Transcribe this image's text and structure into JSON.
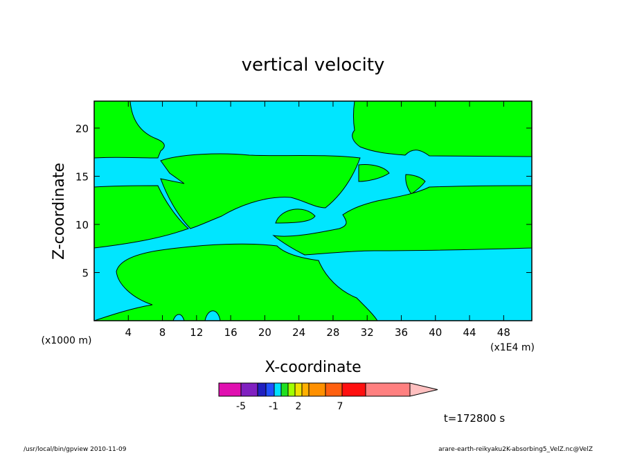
{
  "chart_data": {
    "type": "heatmap",
    "title": "vertical velocity",
    "xlabel": "X-coordinate",
    "ylabel": "Z-coordinate",
    "x_unit_left": "(x1000 m)",
    "x_unit_right": "(x1E4 m)",
    "xlim": [
      0,
      51.3
    ],
    "ylim": [
      0,
      22.8
    ],
    "x_ticks": [
      4,
      8,
      12,
      16,
      20,
      24,
      28,
      32,
      36,
      40,
      44,
      48
    ],
    "y_ticks": [
      5,
      10,
      15,
      20
    ],
    "colorbar": {
      "colors": [
        "#e010b0",
        "#8020c0",
        "#2020c0",
        "#2050ff",
        "#00e0ff",
        "#20e020",
        "#a0ff00",
        "#f0e000",
        "#ffb000",
        "#ff9000",
        "#ff6010",
        "#ff1010",
        "#ff8080",
        "#ffc0c0"
      ],
      "labels": [
        "-5",
        "-1",
        "2",
        "7"
      ]
    },
    "regions_present": [
      {
        "band": "green",
        "color": "#00ff00"
      },
      {
        "band": "cyan",
        "color": "#00e6ff"
      }
    ],
    "time_label": "t=172800  s"
  },
  "footer": {
    "left": "/usr/local/bin/gpview   2010-11-09",
    "right": "arare-earth-reikyaku2K-absorbing5_VelZ.nc@VelZ"
  }
}
